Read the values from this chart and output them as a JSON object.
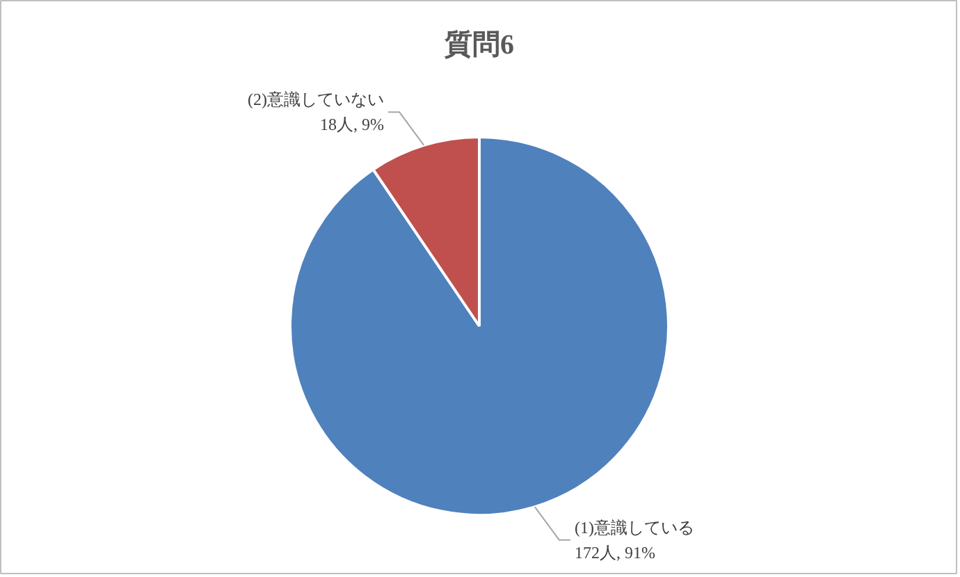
{
  "chart_data": {
    "type": "pie",
    "title": "質問6",
    "categories": [
      "(1)意識している",
      "(2)意識していない"
    ],
    "values": [
      172,
      18
    ],
    "colors": [
      "#4f81bd",
      "#c0504d"
    ],
    "value_labels": [
      "172人, 91%",
      "18人, 9%"
    ]
  }
}
